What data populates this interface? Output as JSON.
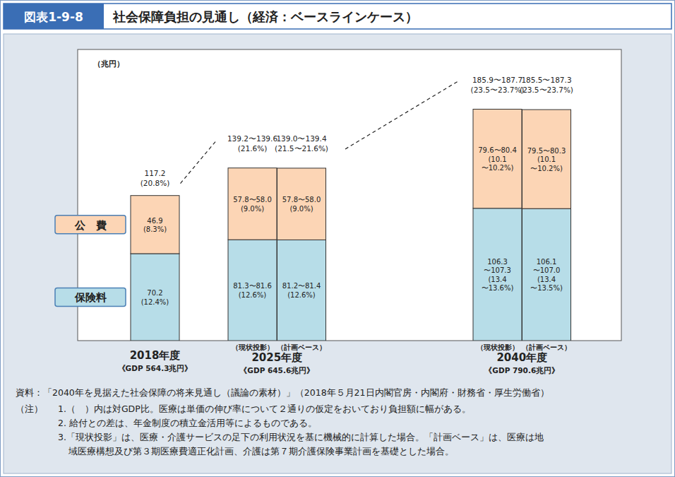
{
  "chart_data": {
    "type": "bar",
    "stacked": true,
    "data_labels": true,
    "tick_labels": "x",
    "legend": "left",
    "grid": false,
    "figure_number": "図表1-9-8",
    "title": "社会保障負担の見通し（経済：ベースラインケース）",
    "y_unit": "（兆円）",
    "ylim": [
      0,
      235
    ],
    "categories": [
      null,
      "（現状投影）",
      "（計画ベース）",
      "（現状投影）",
      "（計画ベース）"
    ],
    "category_groups": [
      {
        "label": "2018年度",
        "note": "《GDP 564.3兆円》",
        "members": [
          0
        ]
      },
      {
        "label": "2025年度",
        "note": "《GDP 645.6兆円》",
        "members": [
          1,
          2
        ]
      },
      {
        "label": "2040年度",
        "note": "《GDP 790.6兆円》",
        "members": [
          3,
          4
        ]
      }
    ],
    "series": [
      {
        "name": "保険料",
        "color": "#b7dde8",
        "values": [
          70.2,
          81.45,
          81.3,
          106.8,
          106.55
        ],
        "value_labels": [
          "70.2\n(12.4%)",
          "81.3〜81.6\n(12.6%)",
          "81.2〜81.4\n(12.6%)",
          "106.3\n〜107.3\n(13.4\n〜13.6%)",
          "106.1\n〜107.0\n(13.4\n〜13.5%)"
        ]
      },
      {
        "name": "公　費",
        "color": "#fcd5b5",
        "values": [
          46.9,
          57.9,
          57.9,
          80.0,
          79.9
        ],
        "value_labels": [
          "46.9\n(8.3%)",
          "57.8〜58.0\n(9.0%)",
          "57.8〜58.0\n(9.0%)",
          "79.6〜80.4\n(10.1\n〜10.2%)",
          "79.5〜80.3\n(10.1\n〜10.2%)"
        ]
      }
    ],
    "totals": [
      117.2,
      139.4,
      139.2,
      186.8,
      186.4
    ],
    "total_labels": [
      "117.2\n(20.8%)",
      "139.2〜139.6\n(21.6%)",
      "139.0〜139.4\n(21.5〜21.6%)",
      "185.9〜187.7\n(23.5〜23.7%)",
      "185.5〜187.3\n(23.5〜23.7%)"
    ],
    "source": "資料：「2040年を見据えた社会保障の将来見通し（議論の素材）」（2018年５月21日内閣官房・内閣府・財務省・厚生労働省）",
    "notes_label": "（注）",
    "notes": [
      "1.（　）内は対GDP比。医療は単価の伸び率について２通りの仮定をおいており負担額に幅がある。",
      "2. 給付との差は、年金制度の積立金活用等によるものである。",
      "3.「現状投影」は、医療・介護サービスの足下の利用状況を基に機械的に計算した場合。「計画ベース」は、医療は地",
      "域医療構想及び第３期医療費適正化計画、介護は第７期介護保険事業計画を基礎とした場合。"
    ]
  }
}
